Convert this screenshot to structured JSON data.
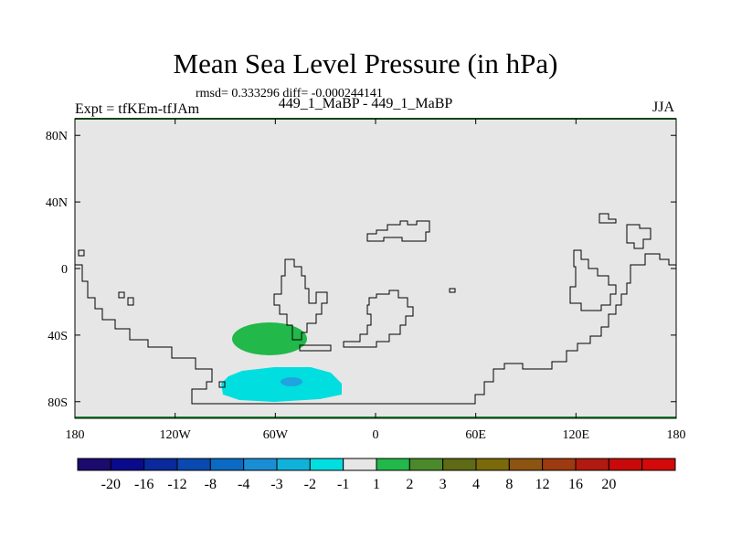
{
  "title": "Mean Sea Level Pressure (in hPa)",
  "stats_line": "rmsd= 0.333296 diff= -0.000244141",
  "subtitle": "449_1_MaBP - 449_1_MaBP",
  "left_label": "Expt = tfKEm-tfJAm",
  "right_label": "JJA",
  "map": {
    "lon_range": [
      -180,
      180
    ],
    "lat_range": [
      -90,
      90
    ],
    "lat_ticks": [
      {
        "value": 80,
        "label": "80N"
      },
      {
        "value": 40,
        "label": "40N"
      },
      {
        "value": 0,
        "label": "0"
      },
      {
        "value": -40,
        "label": "40S"
      },
      {
        "value": -80,
        "label": "80S"
      }
    ],
    "lon_ticks": [
      {
        "value": -180,
        "label": "180"
      },
      {
        "value": -120,
        "label": "120W"
      },
      {
        "value": -60,
        "label": "60W"
      },
      {
        "value": 0,
        "label": "0"
      },
      {
        "value": 60,
        "label": "60E"
      },
      {
        "value": 120,
        "label": "120E"
      },
      {
        "value": 180,
        "label": "180"
      }
    ],
    "background_color": "#e6e6e6",
    "coastline_color": "#000000",
    "anomalies": [
      {
        "name": "positive anomaly 1 to 2 hPa",
        "color": "#22b84a",
        "center_lon": -60,
        "center_lat": -40
      },
      {
        "name": "negative anomaly -2 to -1 hPa",
        "color": "#00dedf",
        "center_lon": -67,
        "center_lat": -68
      },
      {
        "name": "negative anomaly -3 to -2 hPa",
        "color": "#1fa4df",
        "center_lon": -51,
        "center_lat": -67
      }
    ]
  },
  "colorbar": {
    "colors": [
      "#1c0a6e",
      "#0a0a8c",
      "#0a2a9c",
      "#0a4ab0",
      "#0a6ac4",
      "#1a8ed4",
      "#10b2dc",
      "#00dedf",
      "#e6e6e6",
      "#22b84a",
      "#4a8a2a",
      "#5e6a14",
      "#7a6a0a",
      "#8c5410",
      "#9e3a10",
      "#b01a10",
      "#c80a0a",
      "#d40a0a"
    ],
    "labels": [
      "-20",
      "-16",
      "-12",
      "-8",
      "-4",
      "-3",
      "-2",
      "-1",
      "1",
      "2",
      "3",
      "4",
      "8",
      "12",
      "16",
      "20"
    ]
  }
}
